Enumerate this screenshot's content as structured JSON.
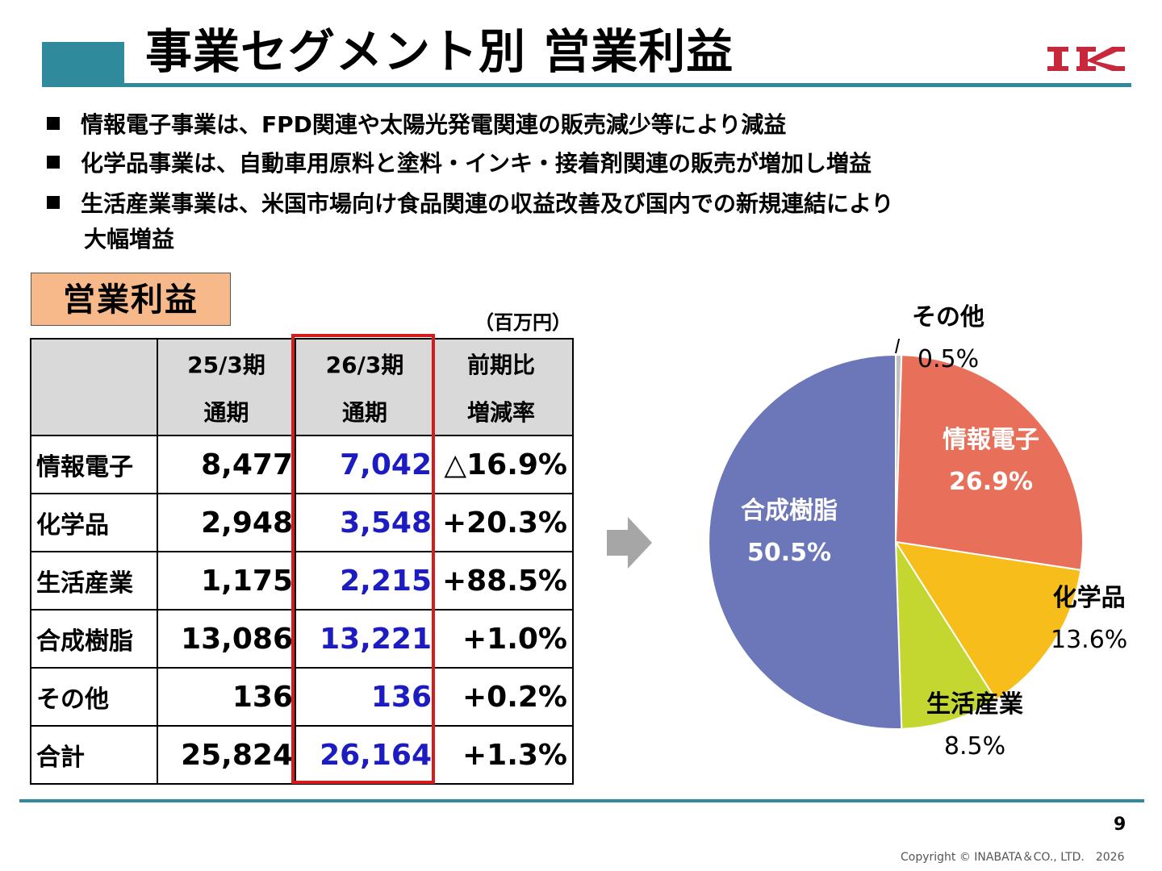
{
  "title": "事業セグメント別 営業利益",
  "logo_text": "IK",
  "bullets": [
    "情報電子事業は、FPD関連や太陽光発電関連の販売減少等により減益",
    "化学品事業は、自動車用原料と塗料・インキ・接着剤関連の販売が増加し増益",
    "生活産業事業は、米国市場向け食品関連の収益改善及び国内での新規連結により",
    "大幅増益"
  ],
  "section_label": "営業利益",
  "unit": "（百万円）",
  "table": {
    "headers": [
      [
        "",
        "25/3期",
        "26/3期",
        "前期比"
      ],
      [
        "",
        "通期",
        "通期",
        "増減率"
      ]
    ],
    "rows": [
      {
        "name": "情報電子",
        "prev": "8,477",
        "curr": "7,042",
        "rate": "△16.9%"
      },
      {
        "name": "化学品",
        "prev": "2,948",
        "curr": "3,548",
        "rate": "+20.3%"
      },
      {
        "name": "生活産業",
        "prev": "1,175",
        "curr": "2,215",
        "rate": "+88.5%"
      },
      {
        "name": "合成樹脂",
        "prev": "13,086",
        "curr": "13,221",
        "rate": "+1.0%"
      },
      {
        "name": "その他",
        "prev": "136",
        "curr": "136",
        "rate": "+0.2%"
      },
      {
        "name": "合計",
        "prev": "25,824",
        "curr": "26,164",
        "rate": "+1.3%"
      }
    ]
  },
  "chart_data": {
    "type": "pie",
    "slices": [
      {
        "label": "その他",
        "value": 0.5,
        "value_label": "0.5%",
        "color": "#bfbfbf"
      },
      {
        "label": "情報電子",
        "value": 26.9,
        "value_label": "26.9%",
        "color": "#e8705a"
      },
      {
        "label": "化学品",
        "value": 13.6,
        "value_label": "13.6%",
        "color": "#f7bd1b"
      },
      {
        "label": "生活産業",
        "value": 8.5,
        "value_label": "8.5%",
        "color": "#c4d630"
      },
      {
        "label": "合成樹脂",
        "value": 50.5,
        "value_label": "50.5%",
        "color": "#6b77b8"
      }
    ]
  },
  "colors": {
    "accent": "#2f8a9c",
    "badge": "#f8b98a",
    "highlight": "#d51c1c",
    "current_values": "#1c1cc0"
  },
  "page_number": "9",
  "copyright": "Copyright © INABATA＆CO., LTD.　2026"
}
